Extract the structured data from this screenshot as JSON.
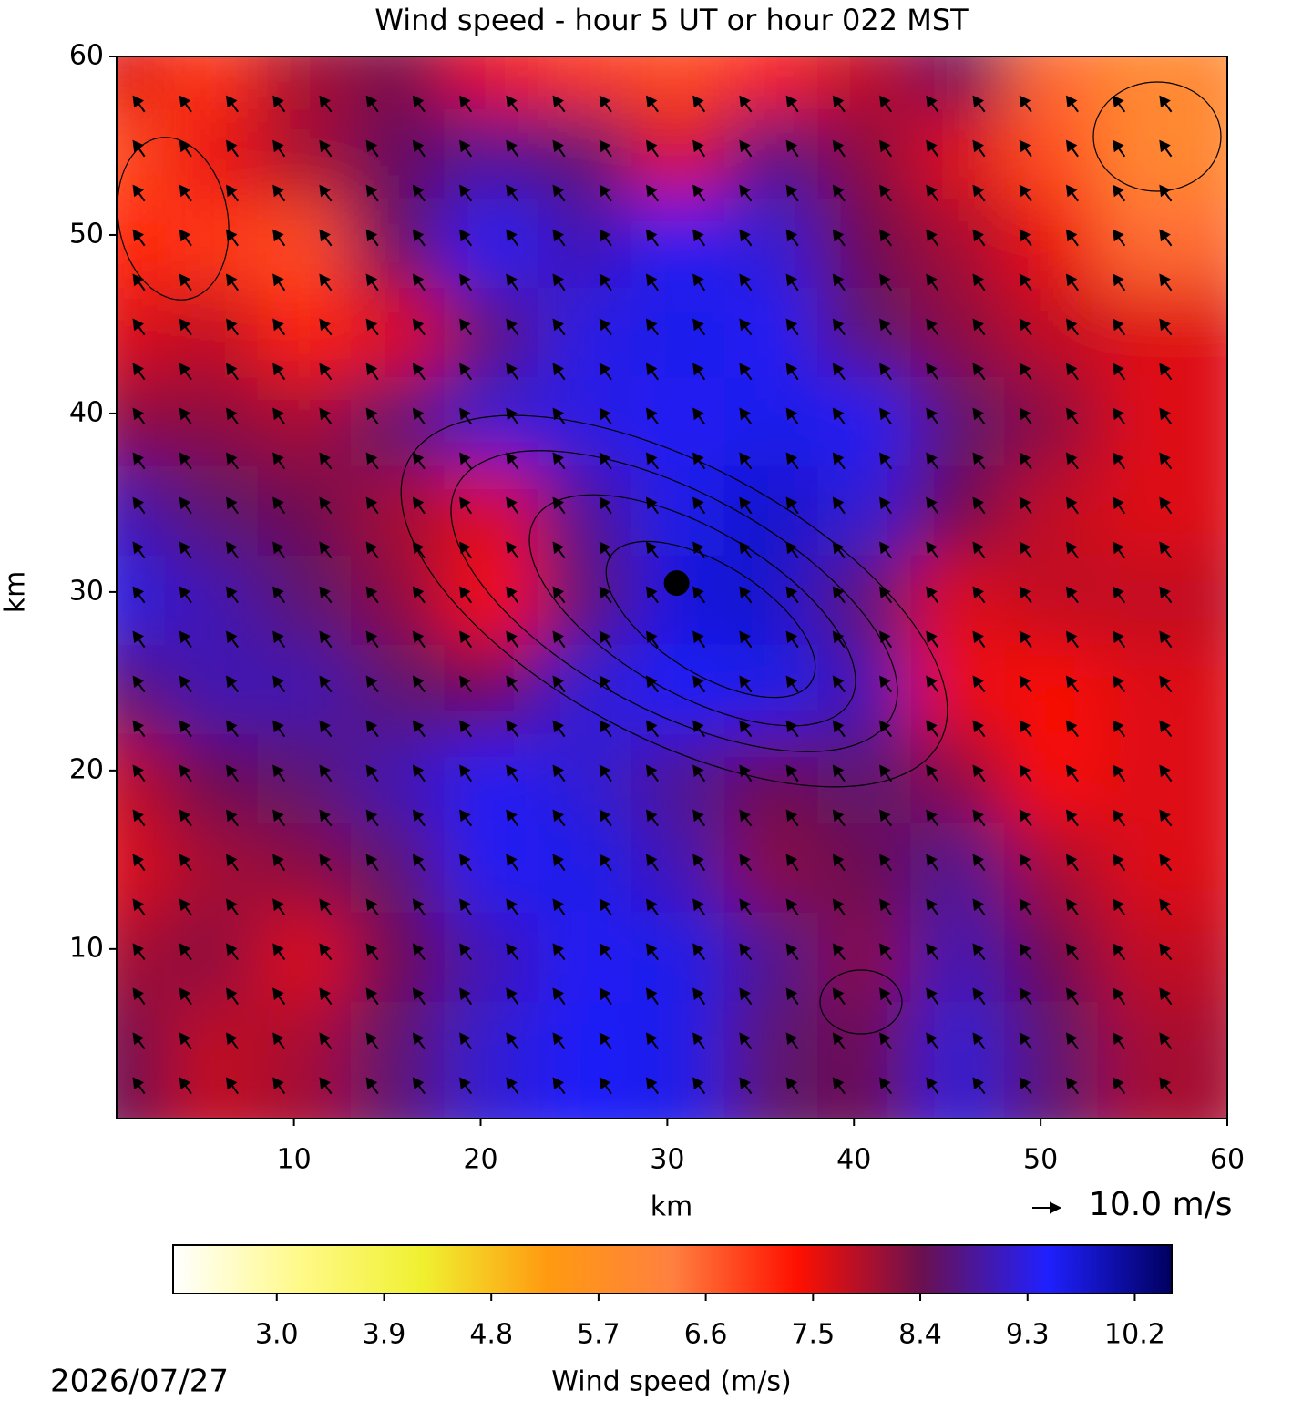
{
  "chart_data": {
    "type": "heatmap",
    "title": "Wind speed - hour 5 UT or hour 022 MST",
    "x_label": "km",
    "y_label": "km",
    "xlim": [
      0.5,
      60
    ],
    "ylim": [
      0.5,
      60
    ],
    "xticks": [
      10,
      20,
      30,
      40,
      50,
      60
    ],
    "yticks": [
      10,
      20,
      30,
      40,
      50,
      60
    ],
    "x": [
      2.5,
      7.5,
      12.5,
      17.5,
      22.5,
      27.5,
      32.5,
      37.5,
      42.5,
      47.5,
      52.5,
      57.5
    ],
    "y": [
      57.5,
      52.5,
      47.5,
      42.5,
      37.5,
      32.5,
      27.5,
      22.5,
      17.5,
      12.5,
      7.5,
      2.5
    ],
    "z": [
      [
        7.6,
        7.0,
        8.0,
        8.3,
        7.5,
        7.0,
        6.8,
        7.2,
        7.8,
        8.5,
        6.5,
        6.0
      ],
      [
        6.8,
        7.5,
        8.0,
        8.5,
        8.8,
        8.6,
        7.6,
        8.7,
        8.2,
        7.6,
        6.8,
        6.0
      ],
      [
        7.2,
        7.0,
        6.8,
        8.5,
        9.4,
        9.0,
        9.4,
        9.2,
        8.4,
        8.0,
        7.5,
        6.5
      ],
      [
        7.6,
        7.8,
        7.2,
        7.6,
        8.6,
        9.3,
        9.6,
        9.4,
        8.6,
        8.2,
        7.8,
        7.6
      ],
      [
        8.2,
        8.2,
        8.0,
        8.6,
        9.2,
        9.3,
        9.4,
        9.6,
        9.4,
        8.6,
        8.2,
        7.6
      ],
      [
        9.0,
        8.6,
        8.4,
        8.0,
        7.6,
        8.8,
        9.6,
        9.8,
        9.2,
        8.4,
        7.8,
        7.6
      ],
      [
        9.3,
        9.0,
        8.6,
        8.2,
        7.4,
        8.6,
        9.7,
        9.8,
        8.6,
        7.6,
        7.8,
        7.8
      ],
      [
        8.6,
        9.0,
        9.0,
        8.6,
        8.4,
        9.2,
        9.5,
        9.6,
        9.0,
        7.5,
        7.4,
        7.6
      ],
      [
        7.8,
        8.4,
        8.6,
        9.0,
        9.4,
        9.2,
        8.8,
        8.4,
        8.6,
        8.2,
        7.4,
        7.6
      ],
      [
        7.6,
        8.0,
        8.2,
        8.6,
        9.4,
        9.6,
        9.0,
        8.2,
        8.4,
        8.8,
        8.0,
        7.6
      ],
      [
        8.0,
        8.2,
        7.6,
        8.4,
        9.0,
        9.4,
        9.6,
        8.8,
        8.2,
        9.0,
        8.4,
        7.8
      ],
      [
        8.4,
        7.8,
        8.0,
        8.6,
        9.2,
        9.5,
        9.6,
        8.6,
        8.4,
        9.2,
        8.6,
        8.0
      ]
    ],
    "quiver": {
      "u": -4,
      "v": 5.5,
      "color": "#000000",
      "key": {
        "value": 10,
        "label": "10.0 m/s"
      }
    },
    "marker": {
      "x": 30.5,
      "y": 30.5,
      "color": "#000000"
    },
    "colorbar": {
      "label": "Wind speed (m/s)",
      "clim": [
        2.13,
        10.51
      ],
      "ticks": [
        {
          "value": 3,
          "label": "3.0"
        },
        3.9,
        4.8,
        5.7,
        6.6,
        7.5,
        8.4,
        9.3,
        10.2
      ],
      "colormap": [
        "#ffffff",
        "#fffa8a",
        "#f0f030",
        "#ff9a10",
        "#ff8040",
        "#ff1000",
        "#6a1050",
        "#2020ff",
        "#000060"
      ]
    },
    "date": "2026/07/27"
  }
}
